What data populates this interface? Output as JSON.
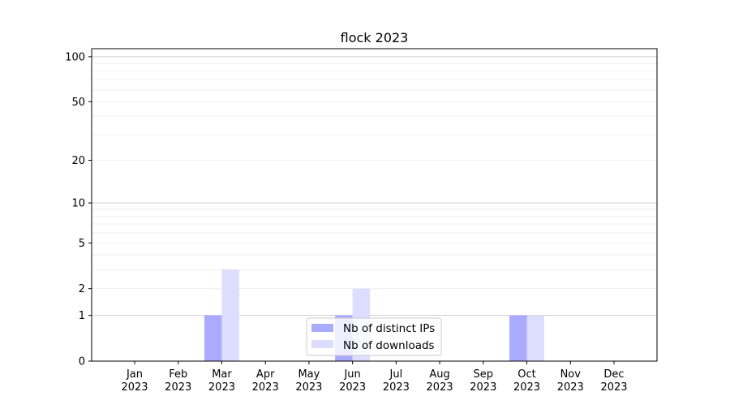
{
  "chart_data": {
    "type": "bar",
    "title": "flock 2023",
    "xlabel": "",
    "ylabel": "",
    "yscale": "log(1+x)",
    "ylim": [
      0,
      113
    ],
    "yticks": [
      0,
      1,
      2,
      5,
      10,
      20,
      50,
      100
    ],
    "grid": true,
    "legend_placement": "lower-center",
    "categories": [
      "Jan\n2023",
      "Feb\n2023",
      "Mar\n2023",
      "Apr\n2023",
      "May\n2023",
      "Jun\n2023",
      "Jul\n2023",
      "Aug\n2023",
      "Sep\n2023",
      "Oct\n2023",
      "Nov\n2023",
      "Dec\n2023"
    ],
    "series": [
      {
        "name": "Nb of distinct IPs",
        "color": "#aaaaff",
        "values": [
          0,
          0,
          1,
          0,
          0,
          1,
          0,
          0,
          0,
          1,
          0,
          0
        ]
      },
      {
        "name": "Nb of downloads",
        "color": "#ddddff",
        "values": [
          0,
          0,
          3,
          0,
          0,
          2,
          0,
          0,
          0,
          1,
          0,
          0
        ]
      }
    ]
  }
}
